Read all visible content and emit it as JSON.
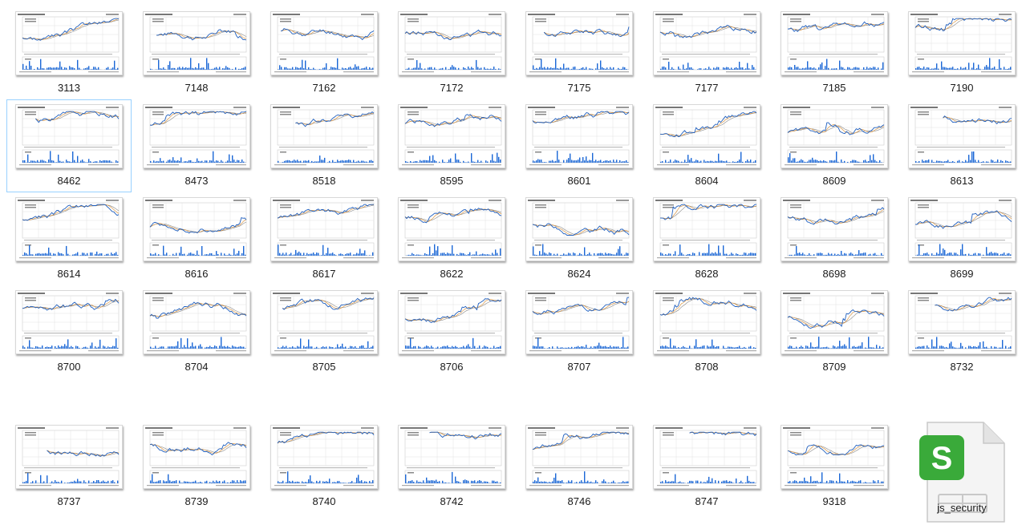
{
  "view": "large-icons",
  "files": [
    {
      "name": "3113",
      "type": "chart-image",
      "seed": 3
    },
    {
      "name": "7148",
      "type": "chart-image",
      "seed": 7
    },
    {
      "name": "7162",
      "type": "chart-image",
      "seed": 11
    },
    {
      "name": "7172",
      "type": "chart-image",
      "seed": 13
    },
    {
      "name": "7175",
      "type": "chart-image",
      "seed": 17
    },
    {
      "name": "7177",
      "type": "chart-image",
      "seed": 19
    },
    {
      "name": "7185",
      "type": "chart-image",
      "seed": 23
    },
    {
      "name": "7190",
      "type": "chart-image",
      "seed": 29
    },
    {
      "name": "8462",
      "type": "chart-image",
      "seed": 31,
      "selected": true
    },
    {
      "name": "8473",
      "type": "chart-image",
      "seed": 37
    },
    {
      "name": "8518",
      "type": "chart-image",
      "seed": 41
    },
    {
      "name": "8595",
      "type": "chart-image",
      "seed": 43
    },
    {
      "name": "8601",
      "type": "chart-image",
      "seed": 47
    },
    {
      "name": "8604",
      "type": "chart-image",
      "seed": 53
    },
    {
      "name": "8609",
      "type": "chart-image",
      "seed": 59
    },
    {
      "name": "8613",
      "type": "chart-image",
      "seed": 61
    },
    {
      "name": "8614",
      "type": "chart-image",
      "seed": 67
    },
    {
      "name": "8616",
      "type": "chart-image",
      "seed": 71
    },
    {
      "name": "8617",
      "type": "chart-image",
      "seed": 73
    },
    {
      "name": "8622",
      "type": "chart-image",
      "seed": 79
    },
    {
      "name": "8624",
      "type": "chart-image",
      "seed": 83
    },
    {
      "name": "8628",
      "type": "chart-image",
      "seed": 89
    },
    {
      "name": "8698",
      "type": "chart-image",
      "seed": 97
    },
    {
      "name": "8699",
      "type": "chart-image",
      "seed": 101
    },
    {
      "name": "8700",
      "type": "chart-image",
      "seed": 103
    },
    {
      "name": "8704",
      "type": "chart-image",
      "seed": 107
    },
    {
      "name": "8705",
      "type": "chart-image",
      "seed": 109
    },
    {
      "name": "8706",
      "type": "chart-image",
      "seed": 113
    },
    {
      "name": "8707",
      "type": "chart-image",
      "seed": 127
    },
    {
      "name": "8708",
      "type": "chart-image",
      "seed": 131
    },
    {
      "name": "8709",
      "type": "chart-image",
      "seed": 137
    },
    {
      "name": "8732",
      "type": "chart-image",
      "seed": 139
    },
    {
      "name": "8737",
      "type": "chart-image",
      "seed": 149
    },
    {
      "name": "8739",
      "type": "chart-image",
      "seed": 151
    },
    {
      "name": "8740",
      "type": "chart-image",
      "seed": 157
    },
    {
      "name": "8742",
      "type": "chart-image",
      "seed": 163
    },
    {
      "name": "8746",
      "type": "chart-image",
      "seed": 167
    },
    {
      "name": "8747",
      "type": "chart-image",
      "seed": 173
    },
    {
      "name": "9318",
      "type": "chart-image",
      "seed": 179
    },
    {
      "name": "js_security",
      "type": "spreadsheet",
      "icon": "spreadsheet-icon",
      "icon_letter": "S",
      "accent_color": "#3aaa3a"
    }
  ],
  "colors": {
    "price_line": "#1f5fbf",
    "avg_line_1": "#d98a2b",
    "avg_line_2": "#8a8a8a",
    "volume_bar": "#1a66d6",
    "selection_border": "#99d1ff"
  }
}
